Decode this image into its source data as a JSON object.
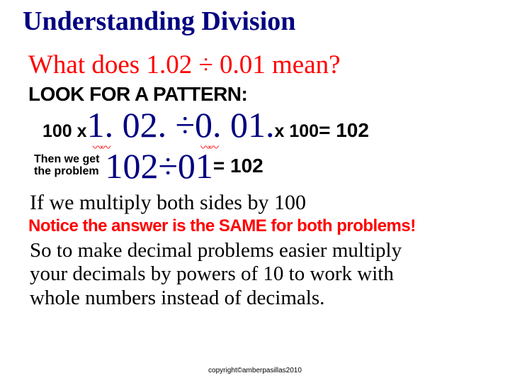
{
  "title": "Understanding Division",
  "question": "What does 1.02 ÷ 0.01 mean?",
  "pattern_label": "LOOK FOR A PATTERN:",
  "row1": {
    "left_mult": "100 x ",
    "dividend": "1. 02",
    "op": ". ÷ ",
    "divisor": "0. 01",
    "dot": ".",
    "right_mult": " x 100",
    "equals": "  = 102"
  },
  "row2": {
    "then_label_l1": "Then we get",
    "then_label_l2": "the problem",
    "dividend": "102 ",
    "op": "÷ ",
    "divisor": "01 ",
    "equals": "= 102"
  },
  "line3": "If we multiply both sides by 100",
  "line4": "Notice the answer is the SAME for both problems!",
  "line5_a": "So to make decimal problems easier multiply",
  "line5_b": "your decimals by powers of 10 to work with",
  "line5_c": "whole numbers instead of decimals.",
  "copyright": "copyright©amberpasillas2010",
  "colors": {
    "title": "#000080",
    "question": "#ff0000",
    "big": "#000080",
    "notice": "#ff0000",
    "wave": "#ff0000"
  }
}
